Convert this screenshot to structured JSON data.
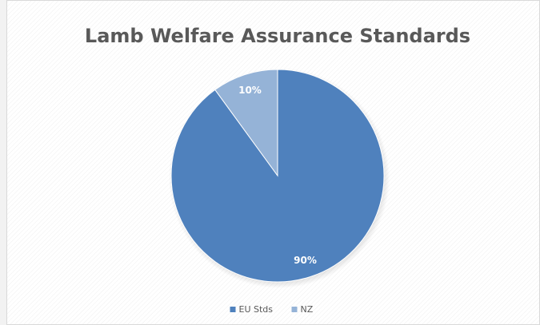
{
  "chart_data": {
    "type": "pie",
    "title": "Lamb Welfare Assurance Standards",
    "categories": [
      "EU Stds",
      "NZ"
    ],
    "values": [
      90,
      10
    ],
    "value_labels": [
      "90%",
      "10%"
    ],
    "colors": [
      "#4f81bd",
      "#95b3d7"
    ],
    "legend": "bottom"
  }
}
